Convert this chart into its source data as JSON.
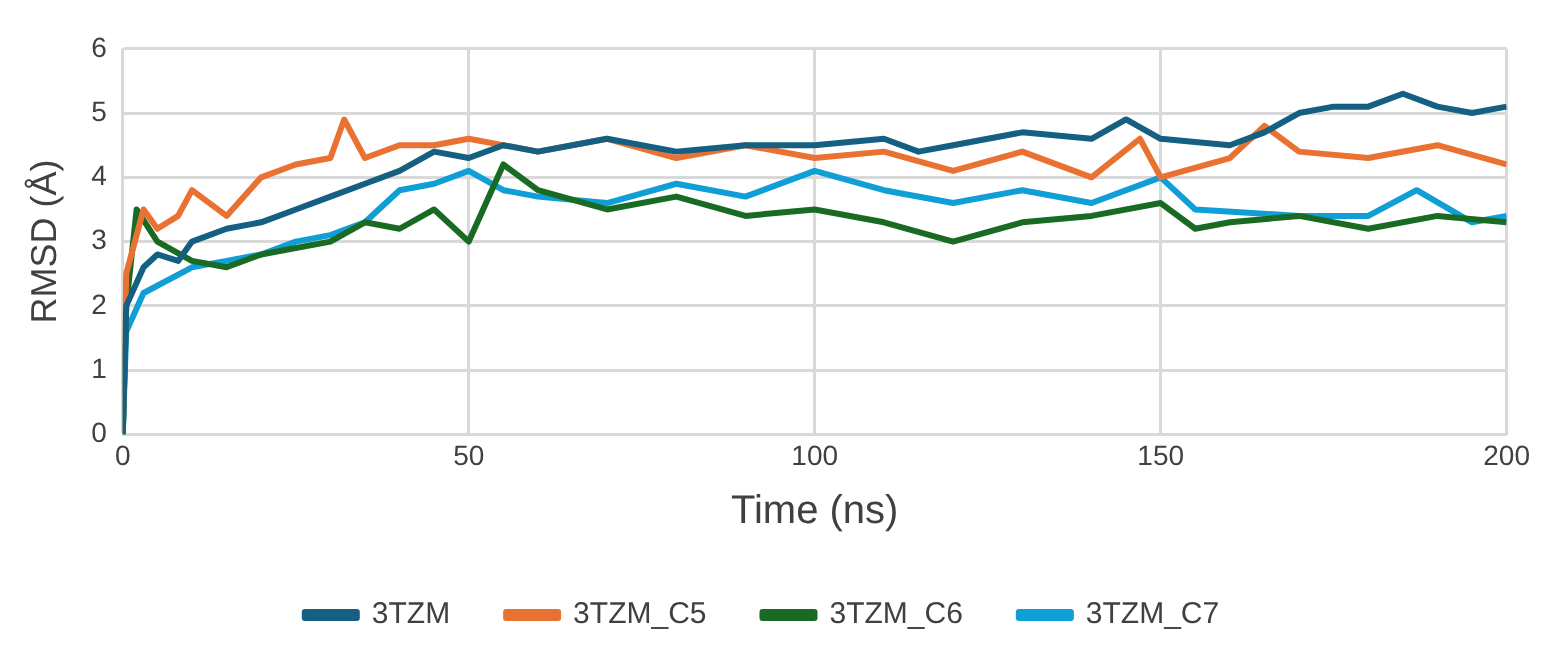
{
  "chart_data": {
    "type": "line",
    "xlabel": "Time (ns)",
    "ylabel": "RMSD (Å)",
    "xlim": [
      0,
      200
    ],
    "xticks": [
      0,
      50,
      100,
      150,
      200
    ],
    "ylim": [
      0,
      6
    ],
    "yticks": [
      0,
      1,
      2,
      3,
      4,
      5,
      6
    ],
    "grid": true,
    "legend": "bottom",
    "marker": "none",
    "line_style": "solid",
    "series": [
      {
        "name": "3TZM",
        "color": "#156082",
        "x": [
          0,
          0.5,
          3,
          5,
          8,
          10,
          15,
          20,
          25,
          30,
          35,
          40,
          45,
          50,
          55,
          60,
          70,
          80,
          90,
          100,
          110,
          115,
          120,
          130,
          140,
          145,
          150,
          160,
          165,
          170,
          175,
          180,
          185,
          190,
          195,
          200
        ],
        "values": [
          0,
          2.0,
          2.6,
          2.8,
          2.7,
          3.0,
          3.2,
          3.3,
          3.5,
          3.7,
          3.9,
          4.1,
          4.4,
          4.3,
          4.5,
          4.4,
          4.6,
          4.4,
          4.5,
          4.5,
          4.6,
          4.4,
          4.5,
          4.7,
          4.6,
          4.9,
          4.6,
          4.5,
          4.7,
          5.0,
          5.1,
          5.1,
          5.3,
          5.1,
          5.0,
          5.1
        ]
      },
      {
        "name": "3TZM_C5",
        "color": "#e97132",
        "x": [
          0,
          0.5,
          3,
          5,
          8,
          10,
          15,
          20,
          25,
          30,
          32,
          35,
          40,
          45,
          50,
          60,
          70,
          80,
          90,
          100,
          110,
          120,
          130,
          140,
          147,
          150,
          160,
          165,
          170,
          180,
          190,
          200
        ],
        "values": [
          0,
          2.5,
          3.5,
          3.2,
          3.4,
          3.8,
          3.4,
          4.0,
          4.2,
          4.3,
          4.9,
          4.3,
          4.5,
          4.5,
          4.6,
          4.4,
          4.6,
          4.3,
          4.5,
          4.3,
          4.4,
          4.1,
          4.4,
          4.0,
          4.6,
          4.0,
          4.3,
          4.8,
          4.4,
          4.3,
          4.5,
          4.2
        ]
      },
      {
        "name": "3TZM_C6",
        "color": "#196b24",
        "x": [
          0,
          0.5,
          2,
          5,
          10,
          15,
          20,
          25,
          30,
          35,
          40,
          45,
          50,
          55,
          60,
          70,
          80,
          90,
          100,
          110,
          120,
          130,
          140,
          150,
          155,
          160,
          170,
          180,
          190,
          200
        ],
        "values": [
          0,
          2.0,
          3.5,
          3.0,
          2.7,
          2.6,
          2.8,
          2.9,
          3.0,
          3.3,
          3.2,
          3.5,
          3.0,
          4.2,
          3.8,
          3.5,
          3.7,
          3.4,
          3.5,
          3.3,
          3.0,
          3.3,
          3.4,
          3.6,
          3.2,
          3.3,
          3.4,
          3.2,
          3.4,
          3.3
        ]
      },
      {
        "name": "3TZM_C7",
        "color": "#0f9ed5",
        "x": [
          0,
          0.5,
          3,
          10,
          15,
          20,
          25,
          30,
          35,
          40,
          45,
          50,
          55,
          60,
          70,
          80,
          90,
          100,
          110,
          120,
          130,
          140,
          150,
          155,
          170,
          180,
          187,
          195,
          200
        ],
        "values": [
          0,
          1.6,
          2.2,
          2.6,
          2.7,
          2.8,
          3.0,
          3.1,
          3.3,
          3.8,
          3.9,
          4.1,
          3.8,
          3.7,
          3.6,
          3.9,
          3.7,
          4.1,
          3.8,
          3.6,
          3.8,
          3.6,
          4.0,
          3.5,
          3.4,
          3.4,
          3.8,
          3.3,
          3.4
        ]
      }
    ]
  }
}
